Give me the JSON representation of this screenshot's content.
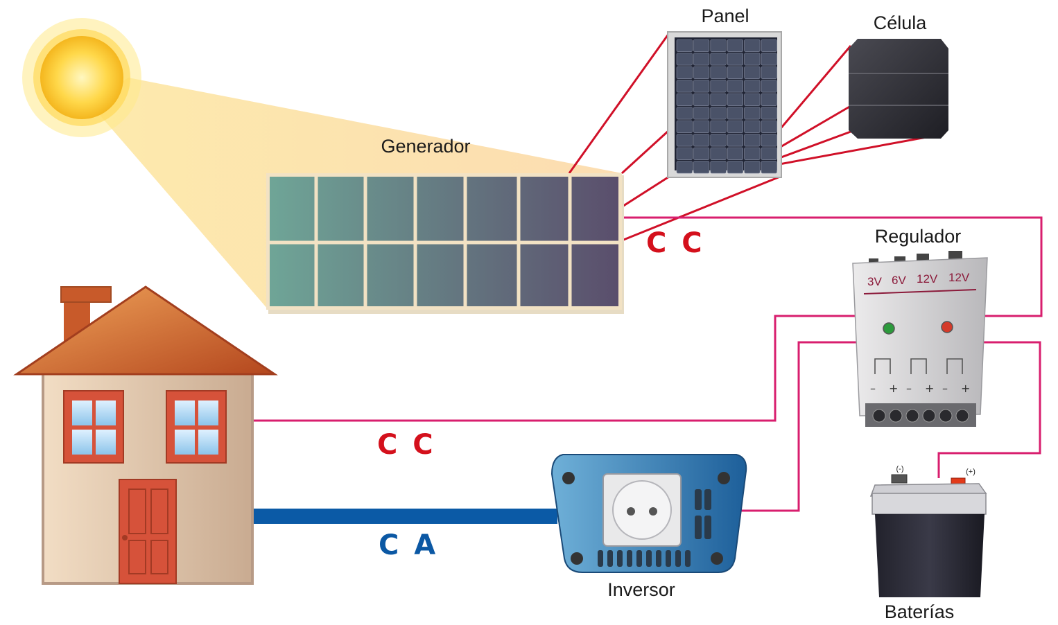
{
  "labels": {
    "panel": "Panel",
    "cell": "Célula",
    "generator": "Generador",
    "regulator": "Regulador",
    "inverter": "Inversor",
    "batteries": "Baterías"
  },
  "current": {
    "dc_top": "C C",
    "dc_house": "C C",
    "ac_house": "C A"
  },
  "regulator_voltages": [
    "3V",
    "6V",
    "12V",
    "12V"
  ],
  "regulator_terminals": [
    "–",
    "+",
    "–",
    "+",
    "–",
    "+"
  ],
  "battery_terminals": {
    "negative": "(-)",
    "positive": "(+)"
  },
  "colors": {
    "dc_wire": "#d81e6e",
    "ac_wire": "#0b5aa6",
    "zoom_lines": "#d01028",
    "dc_text": "#d4101c",
    "ac_text": "#0b58a4"
  }
}
